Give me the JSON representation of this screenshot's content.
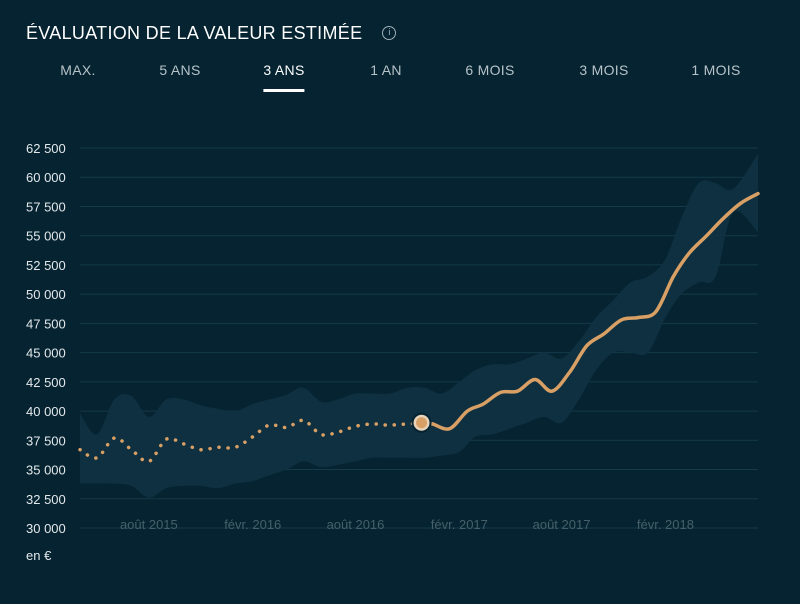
{
  "title": "ÉVALUATION DE LA VALEUR ESTIMÉE",
  "info_icon": "info-icon",
  "tabs": [
    {
      "label": "MAX.",
      "active": false
    },
    {
      "label": "5 ANS",
      "active": false
    },
    {
      "label": "3 ANS",
      "active": true
    },
    {
      "label": "1 AN",
      "active": false
    },
    {
      "label": "6 MOIS",
      "active": false
    },
    {
      "label": "3 MOIS",
      "active": false
    },
    {
      "label": "1 MOIS",
      "active": false
    }
  ],
  "unit_label": "en €",
  "colors": {
    "background": "#052330",
    "line": "#d9a066",
    "band": "#0f3241",
    "grid": "#153a49"
  },
  "chart_data": {
    "type": "line",
    "title": "ÉVALUATION DE LA VALEUR ESTIMÉE",
    "xlabel": "",
    "ylabel": "en €",
    "ylim": [
      30000,
      62500
    ],
    "yticks": [
      30000,
      32500,
      35000,
      37500,
      40000,
      42500,
      45000,
      47500,
      50000,
      52500,
      55000,
      57500,
      60000,
      62500
    ],
    "ytick_labels": [
      "30 000",
      "32 500",
      "35 000",
      "37 500",
      "40 000",
      "42 500",
      "45 000",
      "47 500",
      "50 000",
      "52 500",
      "55 000",
      "57 500",
      "60 000",
      "62 500"
    ],
    "xlim": [
      "2015-04-01",
      "2018-07-15"
    ],
    "xticks": [
      "2015-08-01",
      "2016-02-01",
      "2016-08-01",
      "2017-02-01",
      "2017-08-01",
      "2018-02-01"
    ],
    "xtick_labels": [
      "août 2015",
      "févr. 2016",
      "août 2016",
      "févr. 2017",
      "août 2017",
      "févr. 2018"
    ],
    "grid": true,
    "marker": {
      "x": "2016-11-26",
      "y": 39000
    },
    "series": [
      {
        "style": "dotted",
        "x": [
          "2015-04-01",
          "2015-05-01",
          "2015-06-01",
          "2015-07-01",
          "2015-08-01",
          "2015-09-01",
          "2015-10-01",
          "2015-11-01",
          "2015-12-01",
          "2016-01-01",
          "2016-02-01",
          "2016-03-01",
          "2016-04-01",
          "2016-05-01",
          "2016-06-01",
          "2016-07-01",
          "2016-08-01",
          "2016-09-01",
          "2016-10-01",
          "2016-11-26"
        ],
        "y": [
          36700,
          36000,
          37700,
          36700,
          35700,
          37600,
          37200,
          36700,
          36900,
          36900,
          37800,
          38800,
          38600,
          39200,
          38000,
          38200,
          38700,
          38900,
          38800,
          39000
        ]
      },
      {
        "style": "solid",
        "x": [
          "2016-11-26",
          "2016-12-15",
          "2017-01-15",
          "2017-02-15",
          "2017-03-15",
          "2017-04-15",
          "2017-05-15",
          "2017-06-15",
          "2017-07-15",
          "2017-08-15",
          "2017-09-15",
          "2017-10-15",
          "2017-11-15",
          "2017-12-15",
          "2018-01-15",
          "2018-02-15",
          "2018-03-15",
          "2018-04-15",
          "2018-05-15",
          "2018-06-15",
          "2018-07-15"
        ],
        "y": [
          39000,
          38900,
          38500,
          40000,
          40600,
          41600,
          41700,
          42700,
          41700,
          43300,
          45600,
          46600,
          47800,
          48000,
          48500,
          51500,
          53500,
          55000,
          56500,
          57800,
          58600
        ]
      }
    ],
    "band": {
      "x": [
        "2015-04-01",
        "2015-05-01",
        "2015-06-01",
        "2015-07-01",
        "2015-08-01",
        "2015-09-01",
        "2015-10-01",
        "2015-11-01",
        "2015-12-01",
        "2016-01-01",
        "2016-02-01",
        "2016-03-01",
        "2016-04-01",
        "2016-05-01",
        "2016-06-01",
        "2016-07-01",
        "2016-08-01",
        "2016-09-01",
        "2016-10-01",
        "2016-11-01",
        "2016-12-01",
        "2017-01-01",
        "2017-02-01",
        "2017-03-01",
        "2017-04-01",
        "2017-05-01",
        "2017-06-01",
        "2017-07-01",
        "2017-08-01",
        "2017-09-01",
        "2017-10-01",
        "2017-11-01",
        "2017-12-01",
        "2018-01-01",
        "2018-02-01",
        "2018-03-01",
        "2018-04-01",
        "2018-05-01",
        "2018-06-01",
        "2018-07-15"
      ],
      "upper": [
        39800,
        38000,
        41000,
        41300,
        39500,
        41000,
        41000,
        40500,
        40200,
        40000,
        40600,
        41000,
        41400,
        42000,
        40800,
        41000,
        41500,
        41500,
        41500,
        42000,
        42000,
        41500,
        42500,
        43500,
        44000,
        44000,
        44500,
        45000,
        44500,
        46000,
        48000,
        49500,
        51000,
        51500,
        53000,
        56500,
        59500,
        59500,
        59000,
        62000
      ],
      "lower": [
        33800,
        33800,
        33800,
        33600,
        32600,
        33400,
        33600,
        33600,
        33400,
        33800,
        34000,
        34500,
        35000,
        35700,
        35200,
        35400,
        35700,
        36000,
        36000,
        36000,
        36000,
        36200,
        36500,
        37800,
        38000,
        38500,
        39000,
        39500,
        39000,
        41000,
        43500,
        45000,
        45000,
        45000,
        48000,
        50000,
        51000,
        51500,
        57000,
        55300
      ]
    }
  }
}
